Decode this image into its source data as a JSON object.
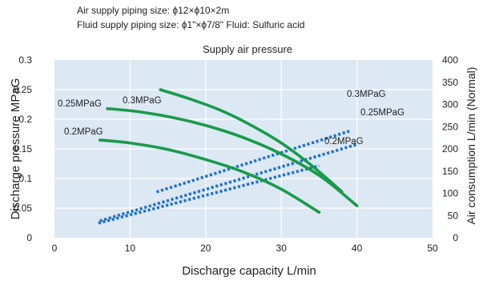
{
  "notes": [
    "Air supply piping size: ϕ12×ϕ10×2m",
    "Fluid supply piping size: ϕ1\"×ϕ7/8\"    Fluid: Sulfuric acid"
  ],
  "chart_data": {
    "type": "line",
    "title": "Supply air pressure",
    "xlabel": "Discharge capacity   L/min",
    "ylabel": "Discharge pressure  MPaG",
    "y2label": "Air consumption   L/min (Normal)",
    "xlim": [
      0,
      50
    ],
    "ylim": [
      0,
      0.3
    ],
    "y2lim": [
      0,
      400
    ],
    "x_ticks": [
      "0",
      "10",
      "20",
      "30",
      "40",
      "50"
    ],
    "y_ticks": [
      "0",
      "0.05",
      "0.1",
      "0.15",
      "0.2",
      "0.25",
      "0.3"
    ],
    "y2_ticks": [
      "0",
      "50",
      "100",
      "150",
      "200",
      "250",
      "300",
      "350",
      "400"
    ],
    "grid": true,
    "colors": {
      "pressure": "#1a9a4a",
      "air": "#1f73c2",
      "plot_bg": "#dce8f4",
      "grid": "#ffffff"
    },
    "pressure_series": [
      {
        "name": "0.3MPaG",
        "x": [
          14,
          18,
          22,
          26,
          30,
          34,
          38
        ],
        "y": [
          0.25,
          0.234,
          0.215,
          0.19,
          0.16,
          0.122,
          0.078
        ]
      },
      {
        "name": "0.25MPaG",
        "x": [
          7,
          11,
          16,
          21,
          26,
          31,
          35.5,
          40
        ],
        "y": [
          0.218,
          0.213,
          0.202,
          0.186,
          0.164,
          0.135,
          0.101,
          0.054
        ]
      },
      {
        "name": "0.2MPaG",
        "x": [
          6,
          10,
          15,
          20,
          25,
          30,
          35
        ],
        "y": [
          0.165,
          0.16,
          0.149,
          0.132,
          0.111,
          0.082,
          0.043
        ]
      }
    ],
    "air_series": [
      {
        "name": "0.3MPaG",
        "axis": "right",
        "x": [
          13.5,
          39
        ],
        "y": [
          103,
          240
        ]
      },
      {
        "name": "0.25MPaG",
        "axis": "right",
        "x": [
          6,
          40
        ],
        "y": [
          38,
          210
        ]
      },
      {
        "name": "0.2MPaG",
        "axis": "right",
        "x": [
          5.8,
          35
        ],
        "y": [
          33,
          162
        ]
      }
    ],
    "series_labels": [
      {
        "text": "0.25MPaG"
      },
      {
        "text": "0.3MPaG"
      },
      {
        "text": "0.2MPaG"
      },
      {
        "text": "0.3MPaG"
      },
      {
        "text": "0.25MPaG"
      },
      {
        "text": "0.2MPaG"
      }
    ]
  }
}
